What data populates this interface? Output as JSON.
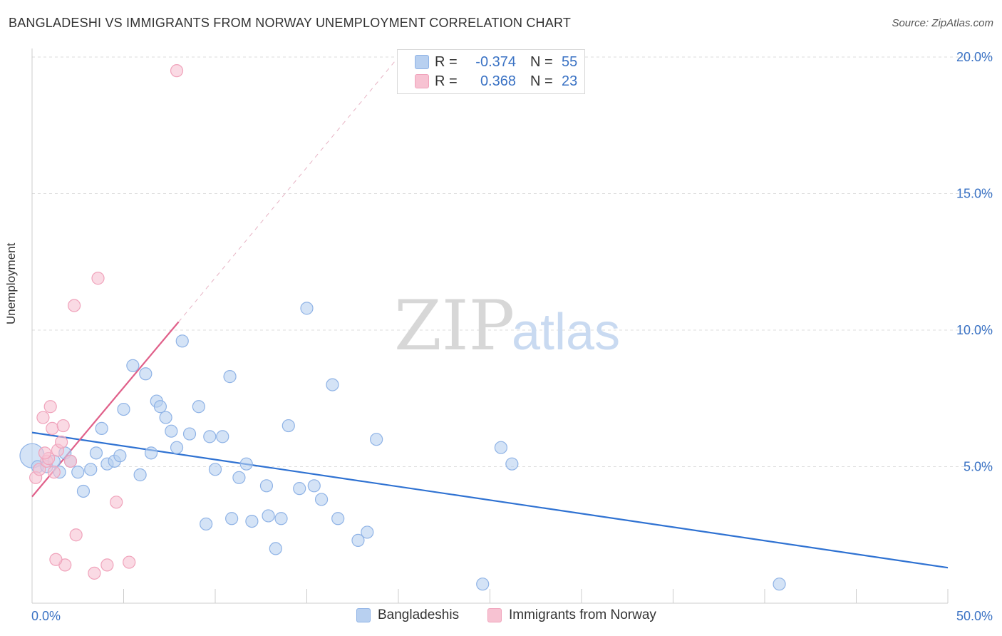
{
  "header": {
    "title": "BANGLADESHI VS IMMIGRANTS FROM NORWAY UNEMPLOYMENT CORRELATION CHART",
    "source": "Source: ZipAtlas.com"
  },
  "legend": {
    "rows": [
      {
        "r_label": "R =",
        "r_value": "-0.374",
        "n_label": "N =",
        "n_value": "55"
      },
      {
        "r_label": "R =",
        "r_value": "0.368",
        "n_label": "N =",
        "n_value": "23"
      }
    ]
  },
  "bottom_legend": {
    "series1": "Bangladeshis",
    "series2": "Immigrants from Norway"
  },
  "watermark": {
    "part1": "ZIP",
    "part2": "atlas"
  },
  "colors": {
    "blue_fill": "#b8d0f0",
    "blue_stroke": "#8fb3e6",
    "blue_line": "#2f72d2",
    "pink_fill": "#f7c2d2",
    "pink_stroke": "#f0a3bb",
    "pink_line": "#e0608a",
    "axis_text": "#3a72c4",
    "grid": "#dddddd"
  },
  "chart_data": {
    "type": "scatter",
    "title": "BANGLADESHI VS IMMIGRANTS FROM NORWAY UNEMPLOYMENT CORRELATION CHART",
    "xlabel": "",
    "ylabel": "Unemployment",
    "xlim": [
      0,
      50
    ],
    "ylim": [
      0,
      20
    ],
    "x_tick_labels": [
      "0.0%",
      "50.0%"
    ],
    "y_ticks": [
      5,
      10,
      15,
      20
    ],
    "y_tick_labels": [
      "5.0%",
      "10.0%",
      "15.0%",
      "20.0%"
    ],
    "grid": "horizontal dashed",
    "legend_position": "top-center",
    "series": [
      {
        "name": "Bangladeshis",
        "color": "#b8d0f0",
        "r": -0.374,
        "n": 55,
        "points": [
          [
            0.0,
            5.4
          ],
          [
            0.3,
            5.0
          ],
          [
            0.8,
            5.0
          ],
          [
            1.2,
            5.2
          ],
          [
            1.5,
            4.8
          ],
          [
            1.8,
            5.5
          ],
          [
            2.1,
            5.2
          ],
          [
            2.5,
            4.8
          ],
          [
            2.8,
            4.1
          ],
          [
            3.2,
            4.9
          ],
          [
            3.5,
            5.5
          ],
          [
            3.8,
            6.4
          ],
          [
            4.1,
            5.1
          ],
          [
            4.5,
            5.2
          ],
          [
            4.8,
            5.4
          ],
          [
            5.0,
            7.1
          ],
          [
            5.5,
            8.7
          ],
          [
            5.9,
            4.7
          ],
          [
            6.2,
            8.4
          ],
          [
            6.5,
            5.5
          ],
          [
            6.8,
            7.4
          ],
          [
            7.0,
            7.2
          ],
          [
            7.3,
            6.8
          ],
          [
            7.6,
            6.3
          ],
          [
            7.9,
            5.7
          ],
          [
            8.2,
            9.6
          ],
          [
            8.6,
            6.2
          ],
          [
            9.1,
            7.2
          ],
          [
            9.5,
            2.9
          ],
          [
            9.7,
            6.1
          ],
          [
            10.0,
            4.9
          ],
          [
            10.4,
            6.1
          ],
          [
            10.8,
            8.3
          ],
          [
            10.9,
            3.1
          ],
          [
            11.3,
            4.6
          ],
          [
            11.7,
            5.1
          ],
          [
            12.0,
            3.0
          ],
          [
            12.8,
            4.3
          ],
          [
            12.9,
            3.2
          ],
          [
            13.3,
            2.0
          ],
          [
            13.6,
            3.1
          ],
          [
            14.0,
            6.5
          ],
          [
            14.6,
            4.2
          ],
          [
            15.0,
            10.8
          ],
          [
            15.4,
            4.3
          ],
          [
            15.8,
            3.8
          ],
          [
            16.4,
            8.0
          ],
          [
            16.7,
            3.1
          ],
          [
            17.8,
            2.3
          ],
          [
            18.3,
            2.6
          ],
          [
            18.8,
            6.0
          ],
          [
            24.6,
            0.7
          ],
          [
            25.6,
            5.7
          ],
          [
            26.2,
            5.1
          ],
          [
            40.8,
            0.7
          ]
        ]
      },
      {
        "name": "Immigrants from Norway",
        "color": "#f7c2d2",
        "r": 0.368,
        "n": 23,
        "points": [
          [
            0.2,
            4.6
          ],
          [
            0.4,
            4.9
          ],
          [
            0.6,
            6.8
          ],
          [
            0.8,
            5.2
          ],
          [
            1.0,
            7.2
          ],
          [
            1.1,
            6.4
          ],
          [
            1.2,
            4.8
          ],
          [
            1.4,
            5.6
          ],
          [
            1.6,
            5.9
          ],
          [
            1.7,
            6.5
          ],
          [
            1.8,
            1.4
          ],
          [
            2.1,
            5.2
          ],
          [
            2.3,
            10.9
          ],
          [
            2.4,
            2.5
          ],
          [
            3.4,
            1.1
          ],
          [
            3.6,
            11.9
          ],
          [
            4.1,
            1.4
          ],
          [
            4.6,
            3.7
          ],
          [
            5.3,
            1.5
          ],
          [
            7.9,
            19.5
          ],
          [
            1.3,
            1.6
          ],
          [
            0.9,
            5.3
          ],
          [
            0.7,
            5.5
          ]
        ]
      }
    ],
    "trend_lines": [
      {
        "series": "Bangladeshis",
        "x": [
          0,
          50
        ],
        "y": [
          6.25,
          1.3
        ],
        "style": "solid"
      },
      {
        "series": "Immigrants from Norway",
        "x": [
          0,
          8.0
        ],
        "y": [
          3.9,
          10.3
        ],
        "style": "solid"
      },
      {
        "series": "Immigrants from Norway",
        "x": [
          8.0,
          20.0
        ],
        "y": [
          10.3,
          20.0
        ],
        "style": "dashed"
      }
    ]
  }
}
